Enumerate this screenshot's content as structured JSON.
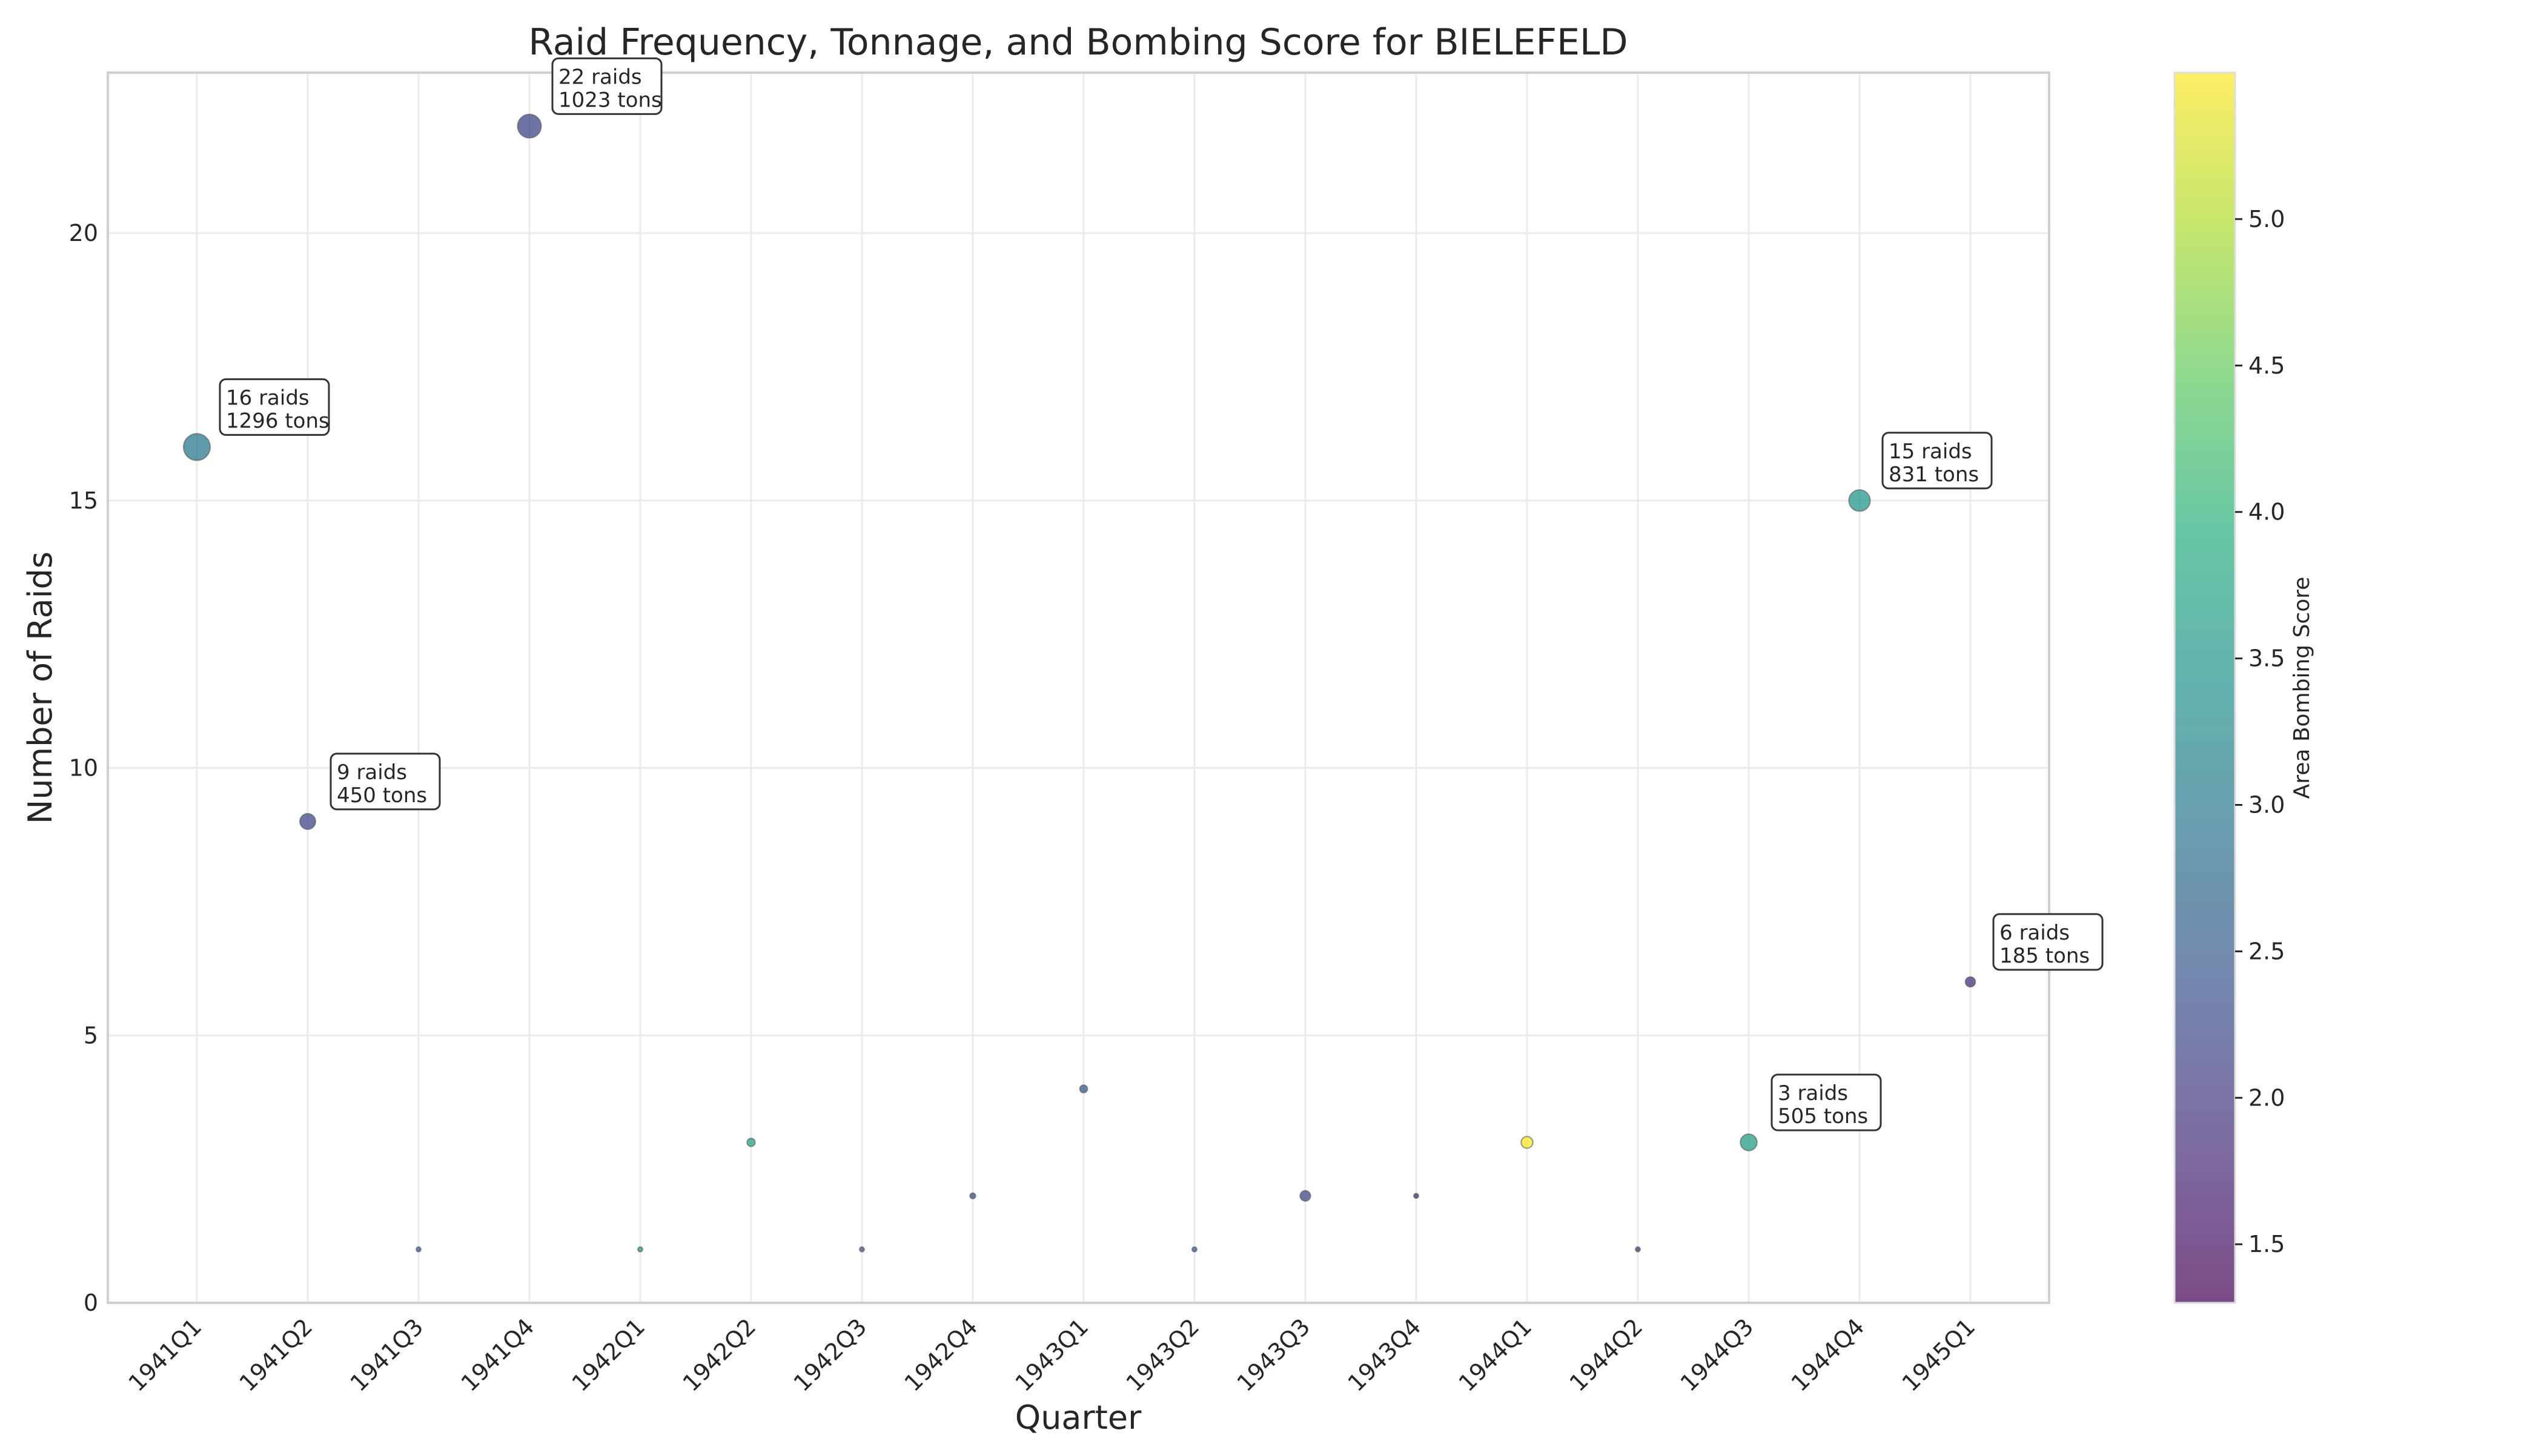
{
  "chart_data": {
    "type": "scatter",
    "title": "Raid Frequency, Tonnage, and Bombing Score for BIELEFELD",
    "xlabel": "Quarter",
    "ylabel": "Number of Raids",
    "colorbar_label": "Area Bombing Score",
    "categories": [
      "1941Q1",
      "1941Q2",
      "1941Q3",
      "1941Q4",
      "1942Q1",
      "1942Q2",
      "1942Q3",
      "1942Q4",
      "1943Q1",
      "1943Q2",
      "1943Q3",
      "1943Q4",
      "1944Q1",
      "1944Q2",
      "1944Q3",
      "1944Q4",
      "1945Q1"
    ],
    "raids": [
      16,
      9,
      1,
      22,
      1,
      3,
      1,
      2,
      4,
      1,
      2,
      2,
      3,
      1,
      3,
      15,
      6
    ],
    "tonnage": [
      1296,
      450,
      3,
      1023,
      40,
      120,
      30,
      60,
      110,
      30,
      200,
      25,
      250,
      10,
      505,
      831,
      185
    ],
    "score": [
      3.0,
      2.2,
      2.5,
      2.2,
      3.6,
      3.7,
      2.4,
      2.3,
      2.5,
      2.5,
      2.2,
      1.8,
      5.45,
      2.0,
      3.6,
      3.5,
      1.9
    ],
    "ylim": [
      0,
      23
    ],
    "yticks": [
      0,
      5,
      10,
      15,
      20
    ],
    "color_range": [
      1.3,
      5.5
    ],
    "colorbar_ticks": [
      1.5,
      2.0,
      2.5,
      3.0,
      3.5,
      4.0,
      4.5,
      5.0
    ],
    "colormap": "viridis",
    "grid": true,
    "annotations": [
      {
        "category": "1941Q1",
        "text": [
          "16 raids",
          "1296 tons"
        ]
      },
      {
        "category": "1941Q2",
        "text": [
          "9 raids",
          "450 tons"
        ]
      },
      {
        "category": "1941Q4",
        "text": [
          "22 raids",
          "1023 tons"
        ]
      },
      {
        "category": "1944Q3",
        "text": [
          "3 raids",
          "505 tons"
        ]
      },
      {
        "category": "1944Q4",
        "text": [
          "15 raids",
          "831 tons"
        ]
      },
      {
        "category": "1945Q1",
        "text": [
          "6 raids",
          "185 tons"
        ]
      }
    ]
  }
}
